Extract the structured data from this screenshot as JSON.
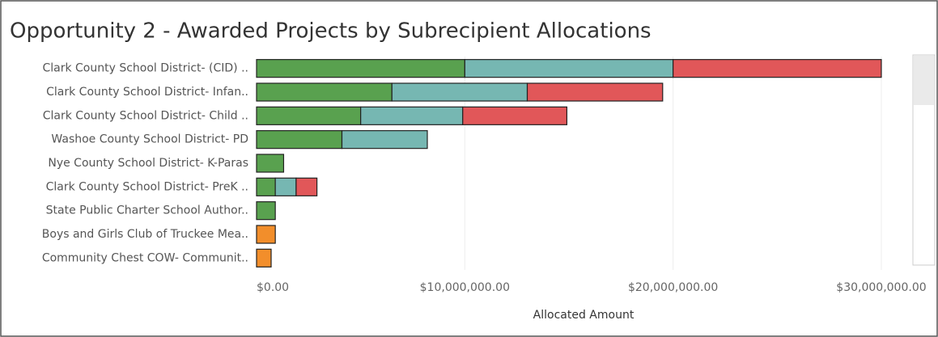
{
  "chart_data": {
    "type": "stacked_barh",
    "title": "Opportunity 2 - Awarded Projects by Subrecipient Allocations",
    "categories": [
      "Clark County School District- (CID) ..",
      "Clark County School District- Infan..",
      "Clark County School District- Child ..",
      "Washoe County School District- PD",
      "Nye County School District- K-Paras",
      "Clark County School District- PreK ..",
      "State Public Charter School Author..",
      "Boys and Girls Club of Truckee Mea..",
      "Community Chest COW- Communit.."
    ],
    "series": [
      {
        "color": "#59a14f",
        "values": [
          10000000,
          6500000,
          5000000,
          4100000,
          1300000,
          900000,
          900000,
          null,
          null
        ]
      },
      {
        "color": "#76b7b2",
        "values": [
          10000000,
          6500000,
          4900000,
          4100000,
          null,
          1000000,
          null,
          null,
          null
        ]
      },
      {
        "color": "#e15759",
        "values": [
          10000000,
          6500000,
          5000000,
          null,
          null,
          1000000,
          null,
          null,
          null
        ]
      },
      {
        "color": "#f28e2b",
        "values": [
          null,
          null,
          null,
          null,
          null,
          null,
          null,
          900000,
          700000
        ]
      }
    ],
    "xlabel": "Allocated Amount",
    "xlim": [
      0,
      31400000
    ],
    "xticks": [
      {
        "value": 0,
        "label": "$0.00"
      },
      {
        "value": 10000000,
        "label": "$10,000,000.00"
      },
      {
        "value": 20000000,
        "label": "$20,000,000.00"
      },
      {
        "value": 30000000,
        "label": "$30,000,000.00"
      }
    ],
    "grid": true
  }
}
